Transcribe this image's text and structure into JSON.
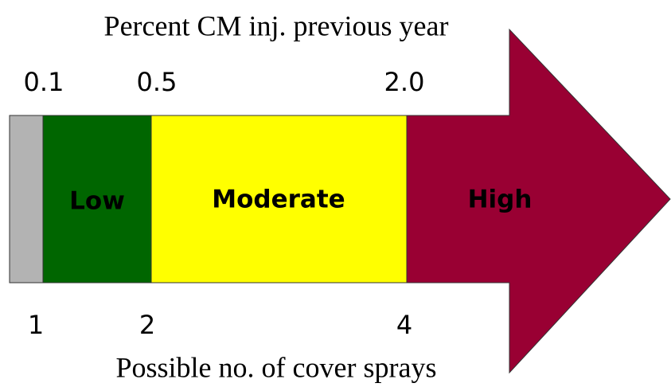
{
  "title": "Percent CM inj. previous year",
  "top_labels": [
    "0.1",
    "0.5",
    "2.0"
  ],
  "segments": [
    {
      "label": "Low"
    },
    {
      "label": "Moderate"
    },
    {
      "label": "High"
    }
  ],
  "bottom_labels": [
    "1",
    "2",
    "4"
  ],
  "caption": "Possible no. of cover sprays"
}
